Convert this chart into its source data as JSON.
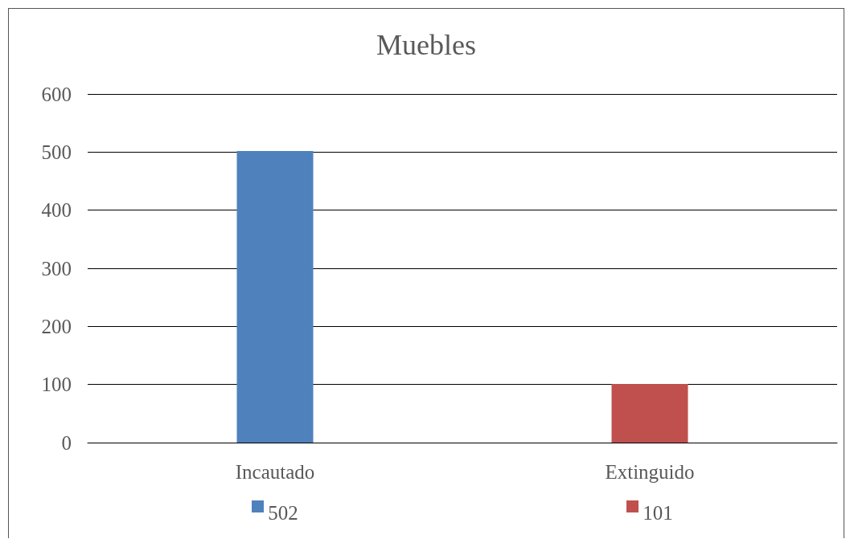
{
  "chart_data": {
    "type": "bar",
    "title": "Muebles",
    "categories": [
      "Incautado",
      "Extinguido"
    ],
    "values": [
      502,
      101
    ],
    "colors": [
      "#4f81bd",
      "#c0504d"
    ],
    "ylim": [
      0,
      600
    ],
    "yticks": [
      0,
      100,
      200,
      300,
      400,
      500,
      600
    ],
    "grid": "y",
    "data_labels": true
  }
}
